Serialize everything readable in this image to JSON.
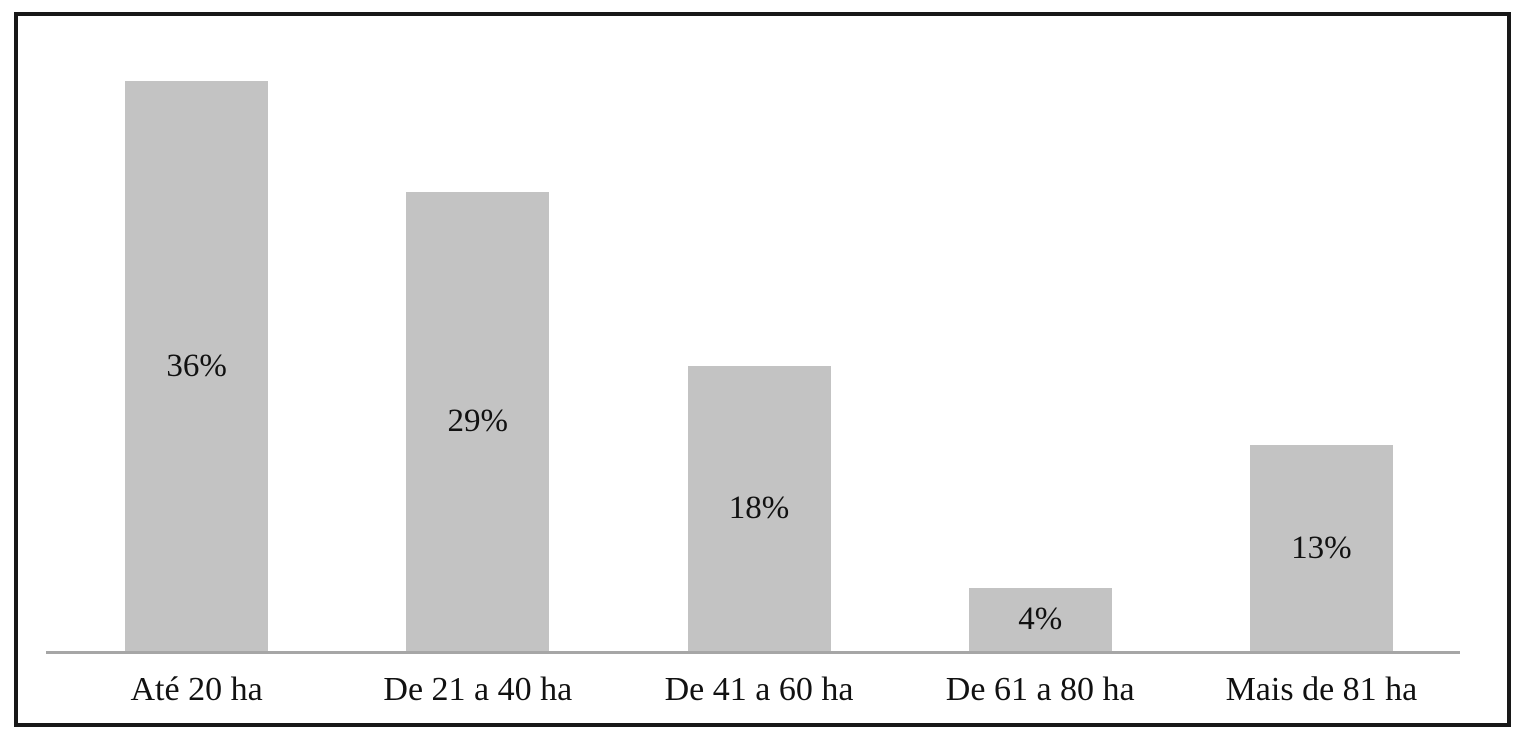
{
  "chart_data": {
    "type": "bar",
    "title": "",
    "xlabel": "",
    "ylabel": "",
    "categories": [
      "Até 20 ha",
      "De 21 a 40 ha",
      "De 41 a 60 ha",
      "De 61 a 80 ha",
      "Mais de 81 ha"
    ],
    "values": [
      36,
      29,
      18,
      4,
      13
    ],
    "value_labels": [
      "36%",
      "29%",
      "18%",
      "4%",
      "13%"
    ],
    "unit": "%",
    "ylim": [
      0,
      40
    ],
    "grid": false,
    "legend": "none",
    "value_label_position": "inside-center",
    "bar_color": "#c3c3c3",
    "axis_line_color": "#a6a6a6",
    "frame_border_color": "#181818",
    "text_color": "#111111",
    "background_color": "#ffffff"
  }
}
